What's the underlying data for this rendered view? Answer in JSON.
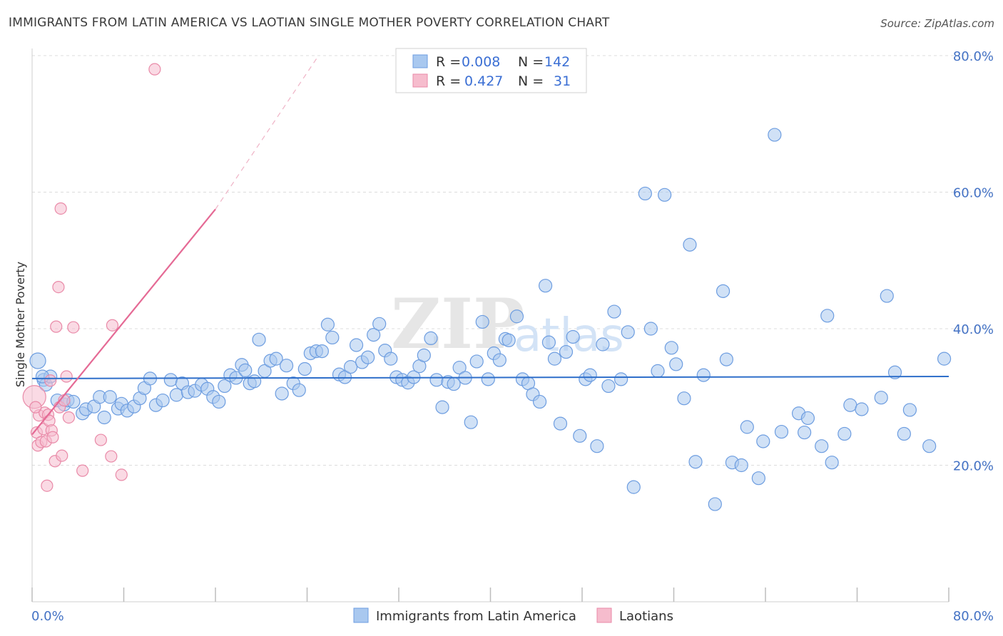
{
  "title": "IMMIGRANTS FROM LATIN AMERICA VS LAOTIAN SINGLE MOTHER POVERTY CORRELATION CHART",
  "source": "Source: ZipAtlas.com",
  "watermark": {
    "zip": "ZIP",
    "atlas": "atlas"
  },
  "colors": {
    "blue_fill": "#a9c8ef",
    "blue_stroke": "#6d9de0",
    "blue_line": "#2f6fca",
    "pink_fill": "#f6bccd",
    "pink_stroke": "#e98aa8",
    "pink_line": "#e56a95",
    "grid": "#dcdcdc",
    "axis_text": "#4472c4"
  },
  "legend": {
    "rows": [
      {
        "r_label": "R =",
        "r_value": "0.008",
        "n_label": "N =",
        "n_value": "142"
      },
      {
        "r_label": "R =",
        "r_value": "0.427",
        "n_label": "N =",
        "n_value": "31"
      }
    ]
  },
  "chart_data": {
    "type": "scatter",
    "title": "IMMIGRANTS FROM LATIN AMERICA VS LAOTIAN SINGLE MOTHER POVERTY CORRELATION CHART",
    "xlabel": "",
    "ylabel": "Single Mother Poverty",
    "xlim": [
      0,
      80
    ],
    "ylim": [
      0,
      80
    ],
    "x_tick_labels": [
      "0.0%",
      "80.0%"
    ],
    "y_ticks": [
      20,
      40,
      60,
      80
    ],
    "y_tick_labels": [
      "20.0%",
      "40.0%",
      "60.0%",
      "80.0%"
    ],
    "grid": "horizontal dashed",
    "legend_position": "top-center",
    "series": [
      {
        "name": "Immigrants from Latin America",
        "color": "#a9c8ef",
        "trend": {
          "x": [
            0,
            80
          ],
          "y": [
            32.7,
            33.0
          ]
        },
        "points": [
          [
            0.5,
            35.3
          ],
          [
            1.0,
            32.5
          ],
          [
            1.2,
            31.8
          ],
          [
            1.6,
            33.0
          ],
          [
            2.2,
            29.5
          ],
          [
            2.8,
            28.9
          ],
          [
            3.1,
            29.5
          ],
          [
            3.6,
            29.3
          ],
          [
            4.4,
            27.6
          ],
          [
            4.7,
            28.2
          ],
          [
            5.4,
            28.6
          ],
          [
            5.9,
            30.0
          ],
          [
            6.3,
            27.0
          ],
          [
            6.8,
            30.0
          ],
          [
            7.5,
            28.3
          ],
          [
            7.8,
            29.0
          ],
          [
            8.3,
            28.0
          ],
          [
            8.9,
            28.6
          ],
          [
            9.4,
            29.8
          ],
          [
            9.8,
            31.3
          ],
          [
            10.3,
            32.7
          ],
          [
            10.8,
            28.8
          ],
          [
            11.4,
            29.5
          ],
          [
            12.1,
            32.5
          ],
          [
            12.6,
            30.3
          ],
          [
            13.1,
            32.0
          ],
          [
            13.6,
            30.7
          ],
          [
            14.2,
            30.9
          ],
          [
            14.8,
            31.8
          ],
          [
            15.3,
            31.2
          ],
          [
            15.8,
            30.0
          ],
          [
            16.3,
            29.3
          ],
          [
            16.8,
            31.6
          ],
          [
            17.3,
            33.2
          ],
          [
            17.8,
            32.8
          ],
          [
            18.3,
            34.7
          ],
          [
            18.6,
            33.9
          ],
          [
            19.0,
            32.0
          ],
          [
            19.4,
            32.3
          ],
          [
            19.8,
            38.4
          ],
          [
            20.3,
            33.8
          ],
          [
            20.8,
            35.3
          ],
          [
            21.3,
            35.6
          ],
          [
            21.8,
            30.5
          ],
          [
            22.2,
            34.6
          ],
          [
            22.8,
            32.0
          ],
          [
            23.3,
            31.0
          ],
          [
            23.8,
            34.1
          ],
          [
            24.3,
            36.4
          ],
          [
            24.8,
            36.7
          ],
          [
            25.3,
            36.7
          ],
          [
            25.8,
            40.6
          ],
          [
            26.2,
            38.7
          ],
          [
            26.8,
            33.3
          ],
          [
            27.3,
            32.9
          ],
          [
            27.8,
            34.4
          ],
          [
            28.3,
            37.6
          ],
          [
            28.8,
            35.1
          ],
          [
            29.3,
            35.8
          ],
          [
            29.8,
            39.1
          ],
          [
            30.3,
            40.7
          ],
          [
            30.8,
            36.8
          ],
          [
            31.3,
            35.6
          ],
          [
            31.8,
            32.9
          ],
          [
            32.3,
            32.5
          ],
          [
            32.8,
            32.1
          ],
          [
            33.3,
            32.9
          ],
          [
            33.8,
            34.5
          ],
          [
            34.2,
            36.1
          ],
          [
            34.8,
            38.6
          ],
          [
            35.3,
            32.5
          ],
          [
            35.8,
            28.5
          ],
          [
            36.3,
            32.2
          ],
          [
            36.8,
            31.9
          ],
          [
            37.3,
            34.3
          ],
          [
            37.8,
            32.8
          ],
          [
            38.3,
            26.3
          ],
          [
            38.8,
            35.2
          ],
          [
            39.3,
            41.0
          ],
          [
            39.8,
            32.6
          ],
          [
            40.3,
            36.4
          ],
          [
            40.8,
            35.4
          ],
          [
            41.3,
            38.5
          ],
          [
            41.6,
            38.3
          ],
          [
            42.3,
            41.8
          ],
          [
            42.8,
            32.6
          ],
          [
            43.3,
            32.0
          ],
          [
            43.7,
            30.4
          ],
          [
            44.3,
            29.3
          ],
          [
            44.8,
            46.3
          ],
          [
            45.1,
            38.0
          ],
          [
            45.6,
            35.6
          ],
          [
            46.1,
            26.1
          ],
          [
            46.6,
            36.6
          ],
          [
            47.2,
            38.8
          ],
          [
            47.8,
            24.3
          ],
          [
            48.3,
            32.6
          ],
          [
            48.7,
            33.2
          ],
          [
            49.3,
            22.8
          ],
          [
            49.8,
            37.7
          ],
          [
            50.3,
            31.6
          ],
          [
            50.8,
            42.5
          ],
          [
            51.4,
            32.6
          ],
          [
            52.0,
            39.5
          ],
          [
            52.5,
            16.8
          ],
          [
            53.5,
            59.8
          ],
          [
            54.0,
            40.0
          ],
          [
            54.6,
            33.8
          ],
          [
            55.2,
            59.6
          ],
          [
            55.8,
            37.2
          ],
          [
            56.2,
            34.8
          ],
          [
            56.9,
            29.8
          ],
          [
            57.4,
            52.3
          ],
          [
            57.9,
            20.5
          ],
          [
            58.6,
            33.2
          ],
          [
            59.6,
            14.3
          ],
          [
            60.3,
            45.5
          ],
          [
            60.6,
            35.5
          ],
          [
            61.1,
            20.4
          ],
          [
            61.9,
            20.0
          ],
          [
            62.4,
            25.6
          ],
          [
            63.4,
            18.1
          ],
          [
            63.8,
            23.5
          ],
          [
            64.8,
            68.4
          ],
          [
            65.4,
            24.9
          ],
          [
            66.9,
            27.6
          ],
          [
            67.4,
            24.8
          ],
          [
            67.7,
            26.9
          ],
          [
            68.9,
            22.8
          ],
          [
            69.4,
            41.9
          ],
          [
            69.8,
            20.4
          ],
          [
            70.9,
            24.6
          ],
          [
            71.4,
            28.8
          ],
          [
            72.4,
            28.2
          ],
          [
            74.1,
            29.9
          ],
          [
            74.6,
            44.8
          ],
          [
            75.3,
            33.6
          ],
          [
            76.1,
            24.6
          ],
          [
            76.6,
            28.1
          ],
          [
            78.3,
            22.8
          ],
          [
            79.6,
            35.6
          ],
          [
            0.9,
            33.0
          ]
        ]
      },
      {
        "name": "Laotians",
        "color": "#f6bccd",
        "trend": {
          "x": [
            0,
            16
          ],
          "y": [
            24.5,
            57.5
          ]
        },
        "trend_dashed": {
          "x": [
            16,
            25
          ],
          "y": [
            57.5,
            80.0
          ]
        },
        "points": [
          [
            0.2,
            30.0
          ],
          [
            0.4,
            24.8
          ],
          [
            0.5,
            22.9
          ],
          [
            0.6,
            27.3
          ],
          [
            0.8,
            23.4
          ],
          [
            1.0,
            25.3
          ],
          [
            1.1,
            27.7
          ],
          [
            1.2,
            23.5
          ],
          [
            1.3,
            17.0
          ],
          [
            1.4,
            27.4
          ],
          [
            1.5,
            26.5
          ],
          [
            1.6,
            32.4
          ],
          [
            1.7,
            25.1
          ],
          [
            1.8,
            24.1
          ],
          [
            2.0,
            20.6
          ],
          [
            2.1,
            40.3
          ],
          [
            2.3,
            46.1
          ],
          [
            2.4,
            28.5
          ],
          [
            2.5,
            57.6
          ],
          [
            2.6,
            21.4
          ],
          [
            2.8,
            29.5
          ],
          [
            3.0,
            33.0
          ],
          [
            3.2,
            27.0
          ],
          [
            3.6,
            40.2
          ],
          [
            4.4,
            19.2
          ],
          [
            6.0,
            23.7
          ],
          [
            6.9,
            21.3
          ],
          [
            7.0,
            40.5
          ],
          [
            7.8,
            18.6
          ],
          [
            10.7,
            78.0
          ],
          [
            0.3,
            28.5
          ]
        ]
      }
    ]
  }
}
